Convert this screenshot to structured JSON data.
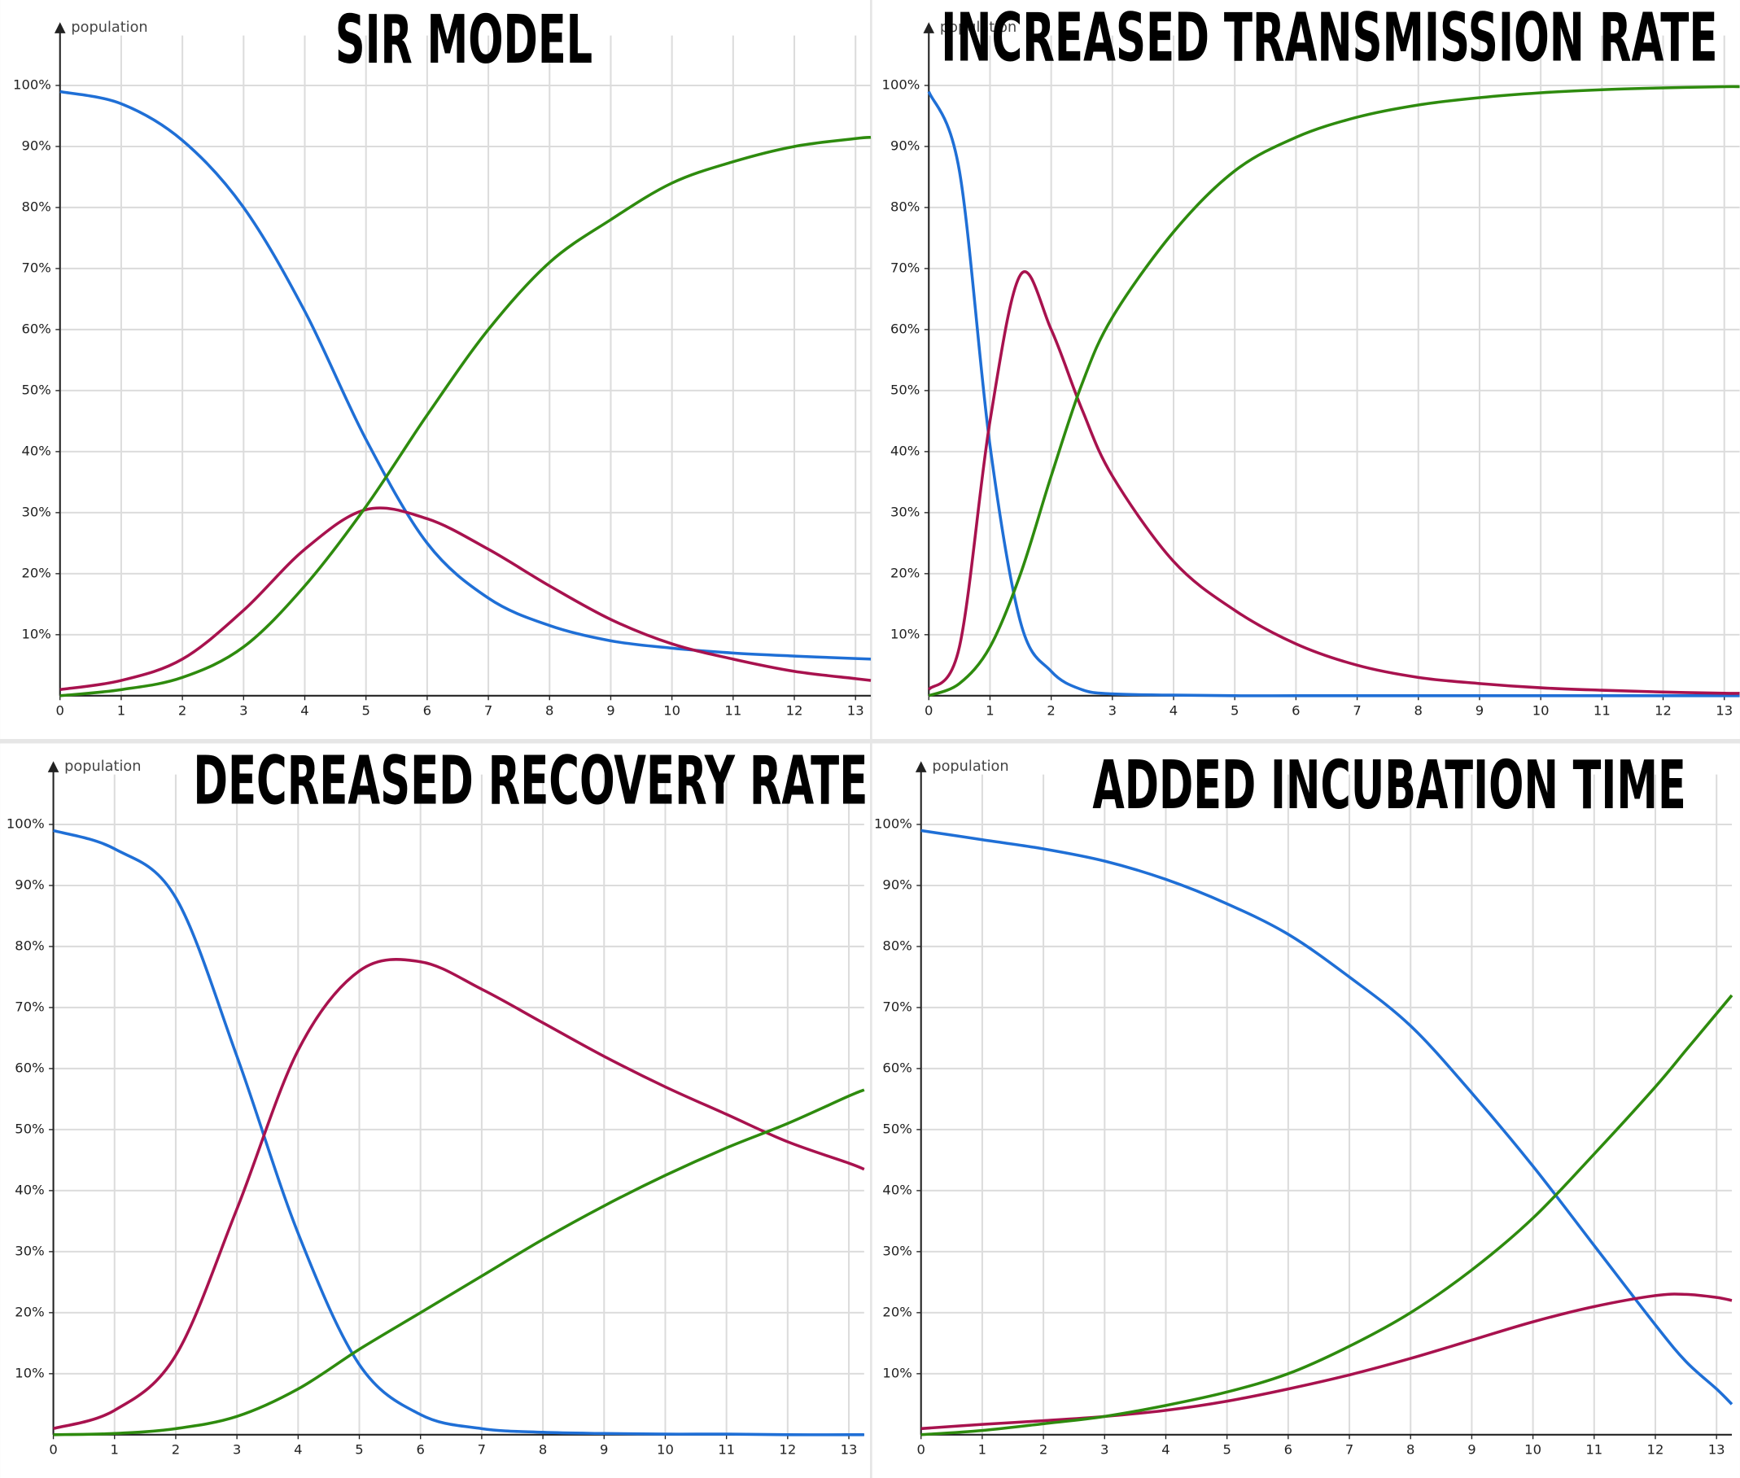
{
  "chart_data": [
    {
      "type": "line",
      "title": "SIR MODEL",
      "y_label": "population",
      "x": [
        0,
        1,
        2,
        3,
        4,
        5,
        6,
        7,
        8,
        9,
        10,
        11,
        12,
        13,
        13.25
      ],
      "xlim": [
        0,
        13.25
      ],
      "ylim": [
        0,
        110
      ],
      "xticks": [
        0,
        1,
        2,
        3,
        4,
        5,
        6,
        7,
        8,
        9,
        10,
        11,
        12,
        13
      ],
      "yticks": [
        {
          "value": 10,
          "label": "10%"
        },
        {
          "value": 20,
          "label": "20%"
        },
        {
          "value": 30,
          "label": "30%"
        },
        {
          "value": 40,
          "label": "40%"
        },
        {
          "value": 50,
          "label": "50%"
        },
        {
          "value": 60,
          "label": "60%"
        },
        {
          "value": 70,
          "label": "70%"
        },
        {
          "value": 80,
          "label": "80%"
        },
        {
          "value": 90,
          "label": "90%"
        },
        {
          "value": 100,
          "label": "100%"
        }
      ],
      "grid": true,
      "series": [
        {
          "color": "#1f6fd6",
          "values": [
            99,
            97,
            91,
            80,
            63,
            42,
            25,
            16,
            11.5,
            9,
            7.8,
            7,
            6.5,
            6.1,
            6
          ]
        },
        {
          "color": "#a8124e",
          "values": [
            1,
            2.5,
            6,
            14,
            24,
            30.5,
            29,
            24,
            18,
            12.5,
            8.5,
            6,
            4,
            2.8,
            2.5
          ]
        },
        {
          "color": "#2e8b0e",
          "values": [
            0,
            1,
            3,
            8,
            18,
            31,
            46,
            60,
            71,
            78,
            84,
            87.5,
            90,
            91.3,
            91.5
          ]
        }
      ]
    },
    {
      "type": "line",
      "title": "INCREASED TRANSMISSION RATE",
      "y_label": "population",
      "x": [
        0,
        0.5,
        1,
        1.5,
        2,
        2.5,
        3,
        4,
        5,
        6,
        7,
        8,
        9,
        10,
        11,
        12,
        13,
        13.25
      ],
      "xlim": [
        0,
        13.25
      ],
      "ylim": [
        0,
        110
      ],
      "xticks": [
        0,
        1,
        2,
        3,
        4,
        5,
        6,
        7,
        8,
        9,
        10,
        11,
        12,
        13
      ],
      "yticks": [
        {
          "value": 10,
          "label": "10%"
        },
        {
          "value": 20,
          "label": "20%"
        },
        {
          "value": 30,
          "label": "30%"
        },
        {
          "value": 40,
          "label": "40%"
        },
        {
          "value": 50,
          "label": "50%"
        },
        {
          "value": 60,
          "label": "60%"
        },
        {
          "value": 70,
          "label": "70%"
        },
        {
          "value": 80,
          "label": "80%"
        },
        {
          "value": 90,
          "label": "90%"
        },
        {
          "value": 100,
          "label": "100%"
        }
      ],
      "grid": true,
      "series": [
        {
          "color": "#1f6fd6",
          "values": [
            99,
            86,
            41,
            12,
            4,
            1,
            0.3,
            0.1,
            0,
            0,
            0,
            0,
            0,
            0,
            0,
            0,
            0,
            0
          ]
        },
        {
          "color": "#a8124e",
          "values": [
            1,
            8,
            45,
            69,
            60,
            47,
            36,
            22,
            14,
            8.5,
            5,
            3,
            2,
            1.3,
            0.9,
            0.6,
            0.4,
            0.4
          ]
        },
        {
          "color": "#2e8b0e",
          "values": [
            0,
            2,
            8,
            20,
            36,
            51,
            62,
            76,
            86,
            91.5,
            94.8,
            96.8,
            98,
            98.8,
            99.3,
            99.6,
            99.8,
            99.8
          ]
        }
      ]
    },
    {
      "type": "line",
      "title": "DECREASED RECOVERY RATE",
      "y_label": "population",
      "x": [
        0,
        1,
        2,
        3,
        4,
        5,
        6,
        7,
        8,
        9,
        10,
        11,
        12,
        13,
        13.25
      ],
      "xlim": [
        0,
        13.25
      ],
      "ylim": [
        0,
        110
      ],
      "xticks": [
        0,
        1,
        2,
        3,
        4,
        5,
        6,
        7,
        8,
        9,
        10,
        11,
        12,
        13
      ],
      "yticks": [
        {
          "value": 10,
          "label": "10%"
        },
        {
          "value": 20,
          "label": "20%"
        },
        {
          "value": 30,
          "label": "30%"
        },
        {
          "value": 40,
          "label": "40%"
        },
        {
          "value": 50,
          "label": "50%"
        },
        {
          "value": 60,
          "label": "60%"
        },
        {
          "value": 70,
          "label": "70%"
        },
        {
          "value": 80,
          "label": "80%"
        },
        {
          "value": 90,
          "label": "90%"
        },
        {
          "value": 100,
          "label": "100%"
        }
      ],
      "grid": true,
      "series": [
        {
          "color": "#1f6fd6",
          "values": [
            99,
            96,
            88,
            62,
            33,
            11.5,
            3.3,
            1,
            0.4,
            0.2,
            0.1,
            0.1,
            0,
            0,
            0
          ]
        },
        {
          "color": "#a8124e",
          "values": [
            1,
            4,
            13,
            37,
            63,
            76,
            77.5,
            73,
            67.5,
            62,
            57,
            52.5,
            48,
            44.5,
            43.5
          ]
        },
        {
          "color": "#2e8b0e",
          "values": [
            0,
            0.2,
            1,
            3,
            7.5,
            14,
            20,
            26,
            32,
            37.5,
            42.5,
            47,
            51,
            55.5,
            56.5
          ]
        }
      ]
    },
    {
      "type": "line",
      "title": "ADDED INCUBATION TIME",
      "y_label": "population",
      "x": [
        0,
        1,
        2,
        3,
        4,
        5,
        6,
        7,
        8,
        9,
        10,
        11,
        12,
        12.5,
        13,
        13.25
      ],
      "xlim": [
        0,
        13.25
      ],
      "ylim": [
        0,
        110
      ],
      "xticks": [
        0,
        1,
        2,
        3,
        4,
        5,
        6,
        7,
        8,
        9,
        10,
        11,
        12,
        13
      ],
      "yticks": [
        {
          "value": 10,
          "label": "10%"
        },
        {
          "value": 20,
          "label": "20%"
        },
        {
          "value": 30,
          "label": "30%"
        },
        {
          "value": 40,
          "label": "40%"
        },
        {
          "value": 50,
          "label": "50%"
        },
        {
          "value": 60,
          "label": "60%"
        },
        {
          "value": 70,
          "label": "70%"
        },
        {
          "value": 80,
          "label": "80%"
        },
        {
          "value": 90,
          "label": "90%"
        },
        {
          "value": 100,
          "label": "100%"
        }
      ],
      "grid": true,
      "series": [
        {
          "color": "#1f6fd6",
          "values": [
            99,
            97.5,
            96,
            94,
            91,
            87,
            82,
            75,
            67,
            56,
            44,
            31,
            18,
            12,
            7.5,
            5
          ]
        },
        {
          "color": "#a8124e",
          "values": [
            1,
            1.7,
            2.3,
            3,
            4,
            5.5,
            7.5,
            9.8,
            12.5,
            15.5,
            18.5,
            21,
            22.8,
            23,
            22.5,
            22
          ]
        },
        {
          "color": "#2e8b0e",
          "values": [
            0,
            0.7,
            1.8,
            3,
            4.8,
            7,
            10,
            14.5,
            20,
            27,
            35.5,
            46,
            57,
            63,
            69,
            72
          ]
        }
      ]
    }
  ]
}
